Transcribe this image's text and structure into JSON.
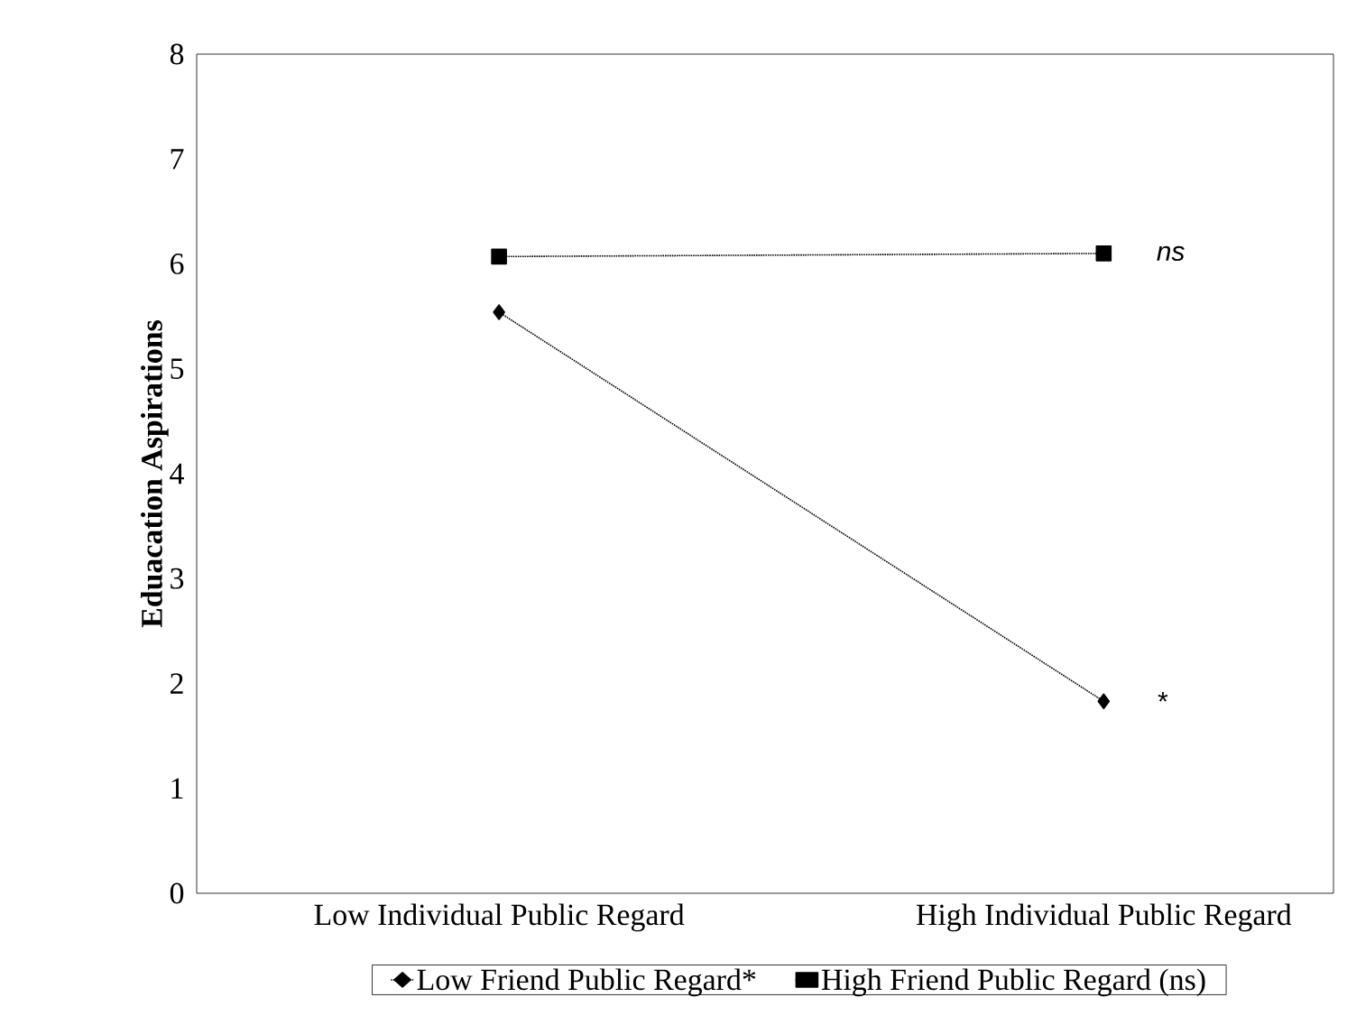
{
  "chart_data": {
    "type": "line",
    "ylabel": "Eduacation Aspirations",
    "categories": [
      "Low Individual Public Regard",
      "High Individual Public Regard"
    ],
    "series": [
      {
        "name": "Low Friend Public Regard*",
        "color": "#000000",
        "marker": "diamond",
        "values": [
          5.54,
          1.83
        ]
      },
      {
        "name": "High Friend Public Regard (ns)",
        "color": "#000000",
        "marker": "square",
        "values": [
          6.07,
          6.1
        ]
      }
    ],
    "ylim": [
      0,
      8
    ],
    "yticks": [
      0,
      1,
      2,
      3,
      4,
      5,
      6,
      7,
      8
    ],
    "line_style": "dotted",
    "legend": "bottom",
    "grid": false,
    "annotations": [
      {
        "text": "ns",
        "x": "High Individual Public Regard",
        "y": 6.1
      },
      {
        "text": "*",
        "x": "High Individual Public Regard",
        "y": 1.83
      }
    ]
  }
}
